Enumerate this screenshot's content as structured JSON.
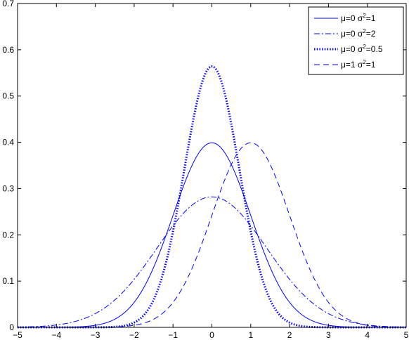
{
  "chart_data": {
    "type": "line",
    "title": "",
    "xlabel": "",
    "ylabel": "",
    "xlim": [
      -5,
      5
    ],
    "ylim": [
      0,
      0.7
    ],
    "xticks": [
      -5,
      -4,
      -3,
      -2,
      -1,
      0,
      1,
      2,
      3,
      4,
      5
    ],
    "yticks": [
      0,
      0.1,
      0.2,
      0.3,
      0.4,
      0.5,
      0.6,
      0.7
    ],
    "xtick_labels": [
      "−5",
      "−4",
      "−3",
      "−2",
      "−1",
      "0",
      "1",
      "2",
      "3",
      "4",
      "5"
    ],
    "ytick_labels": [
      "0",
      "0.1",
      "0.2",
      "0.3",
      "0.4",
      "0.5",
      "0.6",
      "0.7"
    ],
    "grid": false,
    "legend_position": "top-right",
    "line_color": "#0000ff",
    "series": [
      {
        "name": "μ=0 σ²=1",
        "mu_label": "μ=0 σ",
        "sup": "2",
        "eq_label": "=1",
        "style": "solid",
        "x": [
          -5,
          -4,
          -3,
          -2,
          -1.5,
          -1,
          -0.5,
          0,
          0.5,
          1,
          1.5,
          2,
          3,
          4,
          5
        ],
        "y": [
          1.5e-06,
          0.0001,
          0.0044,
          0.054,
          0.1295,
          0.242,
          0.3521,
          0.3989,
          0.3521,
          0.242,
          0.1295,
          0.054,
          0.0044,
          0.0001,
          1.5e-06
        ]
      },
      {
        "name": "μ=0 σ²=2",
        "mu_label": "μ=0 σ",
        "sup": "2",
        "eq_label": "=2",
        "style": "dashdot",
        "x": [
          -5,
          -4,
          -3,
          -2,
          -1.5,
          -1,
          -0.5,
          0,
          0.5,
          1,
          1.5,
          2,
          3,
          4,
          5
        ],
        "y": [
          0.0006,
          0.0052,
          0.0298,
          0.1038,
          0.1617,
          0.2197,
          0.2661,
          0.2821,
          0.2661,
          0.2197,
          0.1617,
          0.1038,
          0.0298,
          0.0052,
          0.0006
        ]
      },
      {
        "name": "μ=0 σ²=0.5",
        "mu_label": "μ=0 σ",
        "sup": "2",
        "eq_label": "=0.5",
        "style": "dotted",
        "x": [
          -5,
          -4,
          -3,
          -2,
          -1.5,
          -1,
          -0.5,
          0,
          0.5,
          1,
          1.5,
          2,
          3,
          4,
          5
        ],
        "y": [
          0,
          1e-07,
          0.0001,
          0.0103,
          0.0595,
          0.2076,
          0.4394,
          0.5642,
          0.4394,
          0.2076,
          0.0595,
          0.0103,
          0.0001,
          1e-07,
          0
        ]
      },
      {
        "name": "μ=1 σ²=1",
        "mu_label": "μ=1 σ",
        "sup": "2",
        "eq_label": "=1",
        "style": "dashed",
        "x": [
          -5,
          -4,
          -3,
          -2,
          -1,
          -0.5,
          0,
          0.5,
          1,
          1.5,
          2,
          2.5,
          3,
          4,
          5
        ],
        "y": [
          0,
          1.5e-06,
          0.0001,
          0.0044,
          0.054,
          0.1295,
          0.242,
          0.3521,
          0.3989,
          0.3521,
          0.242,
          0.1295,
          0.054,
          0.0044,
          0.0001
        ]
      }
    ]
  }
}
